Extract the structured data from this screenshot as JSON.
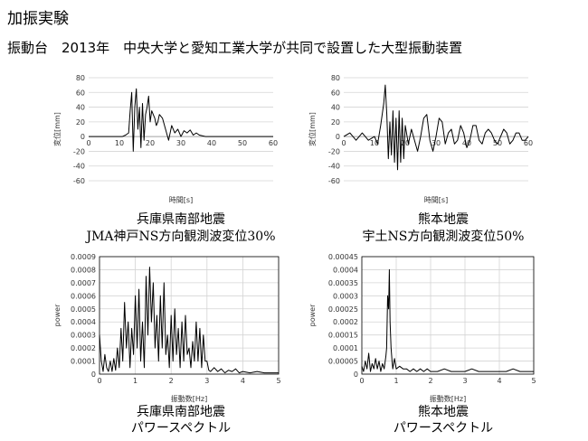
{
  "page": {
    "title": "加振実験",
    "subtitle": "振動台　2013年　中央大学と愛知工業大学が共同で設置した大型振動装置"
  },
  "captions": {
    "tl_line1": "兵庫県南部地震",
    "tl_line2": "JMA神戸NS方向観測波変位30%",
    "tr_line1": "熊本地震",
    "tr_line2": "宇土NS方向観測波変位50%",
    "bl_line1": "兵庫県南部地震",
    "bl_line2": "パワースペクトル",
    "br_line1": "熊本地震",
    "br_line2": "パワースペクトル"
  },
  "chart_data": [
    {
      "id": "tl",
      "type": "line",
      "xlabel": "時間[s]",
      "ylabel": "変位[mm]",
      "xlim": [
        0,
        60
      ],
      "ylim": [
        -60,
        80
      ],
      "xticks": [
        0,
        10,
        20,
        30,
        40,
        50,
        60
      ],
      "yticks": [
        -60,
        -40,
        -20,
        0,
        20,
        40,
        60,
        80
      ],
      "x_axis_at_zero": true,
      "grid": "horizontal",
      "series": [
        {
          "x": [
            0,
            11,
            12,
            13,
            13.5,
            14,
            14.5,
            15,
            15.5,
            16,
            16.5,
            17,
            17.5,
            18,
            18.5,
            19,
            19.5,
            20,
            20.5,
            21,
            21.5,
            22,
            22.5,
            23,
            24,
            25,
            26,
            27,
            28,
            29,
            30,
            31,
            32,
            33,
            34,
            35,
            36,
            38,
            60
          ],
          "y": [
            0,
            0,
            2,
            5,
            35,
            60,
            -20,
            40,
            65,
            10,
            40,
            -15,
            45,
            -5,
            30,
            40,
            55,
            20,
            35,
            30,
            25,
            15,
            20,
            30,
            25,
            10,
            -5,
            15,
            5,
            10,
            0,
            8,
            5,
            9,
            2,
            5,
            2,
            0,
            0
          ]
        }
      ]
    },
    {
      "id": "tr",
      "type": "line",
      "xlabel": "時間[s]",
      "ylabel": "変位[mm]",
      "xlim": [
        0,
        60
      ],
      "ylim": [
        -60,
        80
      ],
      "xticks": [
        0,
        10,
        20,
        30,
        40,
        50,
        60
      ],
      "yticks": [
        -60,
        -40,
        -20,
        0,
        20,
        40,
        60,
        80
      ],
      "x_axis_at_zero": true,
      "grid": "horizontal",
      "series": [
        {
          "x": [
            0,
            2,
            4,
            6,
            8,
            10,
            11,
            12,
            13,
            13.5,
            14,
            14.5,
            15,
            15.5,
            16,
            16.5,
            17,
            17.5,
            18,
            18.5,
            19,
            19.5,
            20,
            21,
            22,
            23,
            24,
            25,
            26,
            27,
            28,
            29,
            30,
            31,
            32,
            33,
            34,
            35,
            36,
            37,
            38,
            39,
            40,
            41,
            42,
            43,
            44,
            45,
            46,
            47,
            48,
            49,
            50,
            51,
            52,
            53,
            54,
            55,
            56,
            57,
            58,
            59,
            60
          ],
          "y": [
            0,
            5,
            -5,
            5,
            -5,
            0,
            -10,
            15,
            45,
            70,
            30,
            -30,
            20,
            -25,
            35,
            -35,
            25,
            -45,
            35,
            -35,
            25,
            -30,
            15,
            -10,
            10,
            -5,
            -20,
            0,
            25,
            30,
            -5,
            -20,
            0,
            25,
            20,
            -10,
            5,
            10,
            -10,
            -5,
            15,
            5,
            -15,
            -5,
            15,
            15,
            -5,
            -10,
            5,
            10,
            5,
            -5,
            -10,
            0,
            10,
            5,
            -10,
            -5,
            5,
            5,
            -5,
            -5,
            0
          ]
        }
      ]
    },
    {
      "id": "bl",
      "type": "line",
      "xlabel": "振動数[Hz]",
      "ylabel": "power",
      "xlim": [
        0,
        5
      ],
      "ylim": [
        0,
        0.0009
      ],
      "xticks": [
        0,
        1,
        2,
        3,
        4,
        5
      ],
      "yticks": [
        0,
        0.0001,
        0.0002,
        0.0003,
        0.0004,
        0.0005,
        0.0006,
        0.0007,
        0.0008,
        0.0009
      ],
      "grid": "both",
      "series": [
        {
          "x": [
            0,
            0.05,
            0.1,
            0.15,
            0.2,
            0.25,
            0.3,
            0.35,
            0.4,
            0.45,
            0.5,
            0.55,
            0.6,
            0.65,
            0.7,
            0.75,
            0.8,
            0.85,
            0.9,
            0.95,
            1.0,
            1.05,
            1.1,
            1.15,
            1.2,
            1.25,
            1.3,
            1.35,
            1.4,
            1.45,
            1.5,
            1.55,
            1.6,
            1.65,
            1.7,
            1.75,
            1.8,
            1.85,
            1.9,
            1.95,
            2.0,
            2.05,
            2.1,
            2.15,
            2.2,
            2.25,
            2.3,
            2.35,
            2.4,
            2.45,
            2.5,
            2.55,
            2.6,
            2.65,
            2.7,
            2.75,
            2.8,
            2.85,
            2.9,
            2.95,
            3.0,
            3.05,
            3.1,
            3.2,
            3.3,
            3.4,
            3.5,
            3.6,
            3.7,
            3.8,
            3.9,
            4.0,
            4.2,
            4.4,
            4.6,
            4.8,
            5.0
          ],
          "y": [
            0.0003,
            0.0001,
            2e-05,
            0.00015,
            5e-05,
            2e-05,
            0.0001,
            2e-05,
            0.00012,
            3e-05,
            0.0002,
            5e-05,
            0.00035,
            0.0001,
            0.00055,
            0.0002,
            0.0004,
            5e-05,
            0.00035,
            0.00015,
            0.0006,
            0.0002,
            0.00065,
            0.0001,
            0.0004,
            5e-05,
            0.00075,
            0.0003,
            0.00082,
            0.0004,
            0.0007,
            0.0002,
            0.00045,
            0.0001,
            0.0006,
            0.0002,
            0.0007,
            0.00015,
            0.0003,
            5e-05,
            0.00045,
            0.0001,
            0.0005,
            0.00015,
            0.00035,
            5e-05,
            0.0004,
            0.0001,
            0.00045,
            0.00015,
            0.0002,
            5e-05,
            0.00025,
            0.0001,
            0.0004,
            0.0001,
            0.00035,
            5e-05,
            0.0003,
            0.0001,
            0.0001,
            3e-05,
            2e-05,
            5e-05,
            2e-05,
            4e-05,
            1e-05,
            3e-05,
            2e-05,
            4e-05,
            1e-05,
            2e-05,
            1e-05,
            2e-05,
            1e-05,
            1e-05,
            1e-05
          ]
        }
      ]
    },
    {
      "id": "br",
      "type": "line",
      "xlabel": "振動数[Hz]",
      "ylabel": "power",
      "xlim": [
        0,
        5
      ],
      "ylim": [
        0,
        0.00045
      ],
      "xticks": [
        0,
        1,
        2,
        3,
        4,
        5
      ],
      "yticks": [
        0,
        5e-05,
        0.0001,
        0.00015,
        0.0002,
        0.00025,
        0.0003,
        0.00035,
        0.0004,
        0.00045
      ],
      "grid": "both",
      "series": [
        {
          "x": [
            0,
            0.05,
            0.1,
            0.15,
            0.2,
            0.25,
            0.3,
            0.35,
            0.4,
            0.45,
            0.5,
            0.55,
            0.6,
            0.65,
            0.7,
            0.72,
            0.75,
            0.78,
            0.8,
            0.82,
            0.85,
            0.88,
            0.9,
            0.95,
            1.0,
            1.1,
            1.2,
            1.3,
            1.4,
            1.5,
            1.6,
            1.7,
            1.8,
            1.9,
            2.0,
            2.2,
            2.4,
            2.6,
            2.8,
            3.0,
            3.2,
            3.4,
            3.6,
            3.8,
            4.0,
            4.2,
            4.4,
            4.6,
            4.8,
            5.0
          ],
          "y": [
            3e-05,
            1e-05,
            5e-05,
            2e-05,
            8e-05,
            1e-05,
            4e-05,
            2e-05,
            6e-05,
            2e-05,
            5e-05,
            1e-05,
            4e-05,
            2e-05,
            7e-05,
            0.0001,
            0.0003,
            0.00025,
            0.0004,
            0.0002,
            0.0001,
            5e-05,
            2e-05,
            6e-05,
            2e-05,
            3e-05,
            2e-05,
            2e-05,
            1e-05,
            2e-05,
            1e-05,
            2e-05,
            1e-05,
            2e-05,
            1e-05,
            1e-05,
            2e-05,
            1e-05,
            1e-05,
            1e-05,
            2e-05,
            1e-05,
            1e-05,
            1e-05,
            1e-05,
            1e-05,
            2e-05,
            1e-05,
            1e-05,
            1e-05
          ]
        }
      ]
    }
  ]
}
